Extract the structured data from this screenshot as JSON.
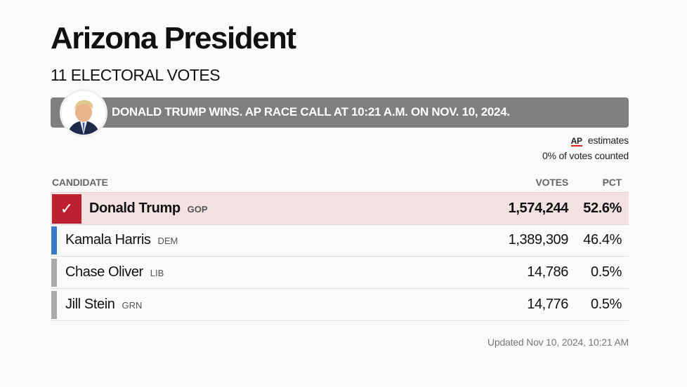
{
  "header": {
    "title": "Arizona President",
    "subtitle": "11 ELECTORAL VOTES"
  },
  "banner": {
    "text": "DONALD TRUMP WINS. AP RACE CALL AT 10:21 A.M. ON NOV. 10, 2024.",
    "color": "#7f7f7f",
    "avatar": "candidate-photo"
  },
  "estimates": {
    "logo": "AP",
    "label": "estimates",
    "counted": "0% of votes counted"
  },
  "table": {
    "columns": [
      "CANDIDATE",
      "VOTES",
      "PCT"
    ],
    "rows": [
      {
        "name": "Donald Trump",
        "party": "GOP",
        "votes": "1,574,244",
        "pct": "52.6%",
        "winner": true,
        "color": "#bd2130"
      },
      {
        "name": "Kamala Harris",
        "party": "DEM",
        "votes": "1,389,309",
        "pct": "46.4%",
        "color": "#3a78c9"
      },
      {
        "name": "Chase Oliver",
        "party": "LIB",
        "votes": "14,786",
        "pct": "0.5%",
        "color": "#aaaaaa"
      },
      {
        "name": "Jill Stein",
        "party": "GRN",
        "votes": "14,776",
        "pct": "0.5%",
        "color": "#aaaaaa"
      }
    ]
  },
  "footer": {
    "updated": "Updated Nov 10, 2024, 10:21 AM"
  }
}
